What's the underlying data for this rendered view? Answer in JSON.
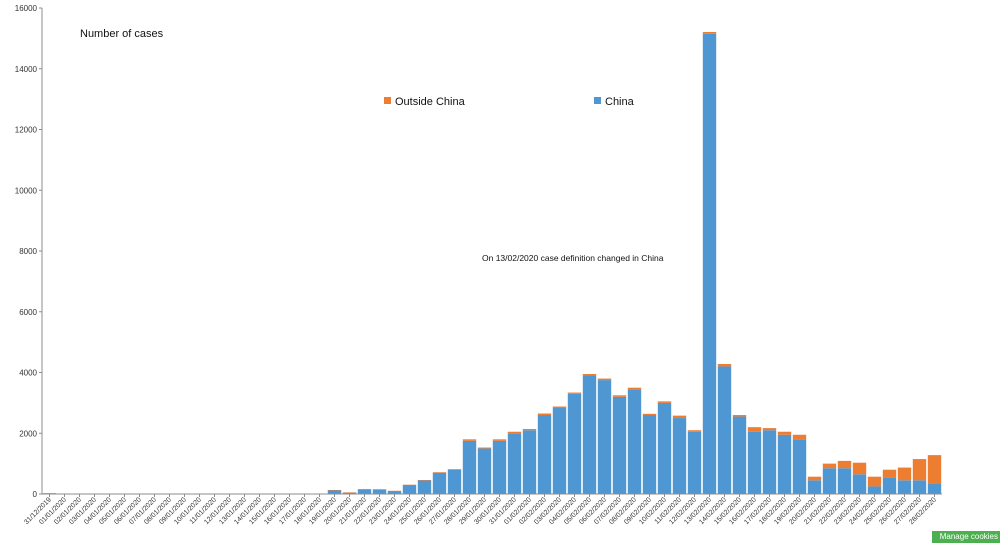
{
  "chart_data": {
    "type": "bar",
    "stacked": true,
    "title": "Number of cases",
    "annotation": "On 13/02/2020 case definition changed in China",
    "ylim": [
      0,
      16000
    ],
    "yticks": [
      0,
      2000,
      4000,
      6000,
      8000,
      10000,
      12000,
      14000,
      16000
    ],
    "grid": false,
    "legend_position": "top-center",
    "colors": {
      "China": "#4f97d2",
      "Outside China": "#ed7d31"
    },
    "categories": [
      "31/12/2019",
      "01/01/2020",
      "02/01/2020",
      "03/01/2020",
      "04/01/2020",
      "05/01/2020",
      "06/01/2020",
      "07/01/2020",
      "08/01/2020",
      "09/01/2020",
      "10/01/2020",
      "11/01/2020",
      "12/01/2020",
      "13/01/2020",
      "14/01/2020",
      "15/01/2020",
      "16/01/2020",
      "17/01/2020",
      "18/01/2020",
      "19/01/2020",
      "20/01/2020",
      "21/01/2020",
      "22/01/2020",
      "23/01/2020",
      "24/01/2020",
      "25/01/2020",
      "26/01/2020",
      "27/01/2020",
      "28/01/2020",
      "29/01/2020",
      "30/01/2020",
      "31/01/2020",
      "01/02/2020",
      "02/02/2020",
      "03/02/2020",
      "04/02/2020",
      "05/02/2020",
      "06/02/2020",
      "07/02/2020",
      "08/02/2020",
      "09/02/2020",
      "10/02/2020",
      "11/02/2020",
      "12/02/2020",
      "13/02/2020",
      "14/02/2020",
      "15/02/2020",
      "16/02/2020",
      "17/02/2020",
      "18/02/2020",
      "19/02/2020",
      "20/02/2020",
      "21/02/2020",
      "22/02/2020",
      "23/02/2020",
      "24/02/2020",
      "25/02/2020",
      "26/02/2020",
      "27/02/2020",
      "28/02/2020"
    ],
    "x_tick_labels": [
      "31/12/2019",
      "01/01/2020",
      "02/01/2020",
      "03/01/2020",
      "04/01/2020",
      "05/01/2020",
      "06/01/2020",
      "07/01/2020",
      "08/01/2020",
      "09/01/2020",
      "10/01/2020",
      "11/01/2020",
      "12/01/2020",
      "13/01/2020",
      "14/01/2020",
      "15/01/2020",
      "16/01/2020",
      "17/01/2020",
      "18/01/2020",
      "19/01/2020",
      "20/01/2020",
      "21/01/2020",
      "22/01/2020",
      "23/01/2020",
      "24/01/2020",
      "25/01/2020",
      "26/01/2020",
      "27/01/2020",
      "28/01/2020",
      "29/01/2020",
      "30/01/2020",
      "31/01/2020",
      "01/02/2020",
      "02/02/2020",
      "03/02/2020",
      "04/02/2020",
      "05/02/2020",
      "06/02/2020",
      "07/02/2020",
      "08/02/2020",
      "09/02/2020",
      "10/02/2020",
      "11/02/2020",
      "12/02/2020",
      "13/02/2020",
      "14/02/2020",
      "15/02/2020",
      "16/02/2020",
      "17/02/2020",
      "18/02/2020",
      "19/02/2020",
      "20/02/2020",
      "21/02/2020",
      "22/02/2020",
      "23/02/2020",
      "24/02/2020",
      "25/02/2020",
      "26/02/2020",
      "27/02/2020",
      "28/02/2020"
    ],
    "series": [
      {
        "name": "China",
        "values": [
          27,
          0,
          0,
          0,
          0,
          0,
          0,
          0,
          0,
          0,
          0,
          0,
          0,
          0,
          0,
          0,
          0,
          0,
          0,
          130,
          50,
          150,
          150,
          100,
          300,
          450,
          700,
          800,
          1750,
          1500,
          1750,
          2000,
          2100,
          2600,
          2850,
          3300,
          3900,
          3750,
          3200,
          3450,
          2600,
          3000,
          2500,
          2050,
          15150,
          4200,
          2550,
          2050,
          2100,
          1950,
          1800,
          450,
          850,
          850,
          650,
          250,
          550,
          450,
          450,
          330
        ]
      },
      {
        "name": "Outside China",
        "values": [
          0,
          0,
          0,
          0,
          0,
          0,
          0,
          0,
          0,
          0,
          0,
          0,
          0,
          0,
          0,
          0,
          0,
          0,
          0,
          3,
          3,
          10,
          5,
          5,
          5,
          10,
          20,
          20,
          50,
          30,
          50,
          50,
          40,
          50,
          30,
          40,
          50,
          50,
          50,
          50,
          40,
          50,
          80,
          50,
          60,
          80,
          50,
          150,
          70,
          100,
          150,
          120,
          150,
          240,
          380,
          320,
          250,
          420,
          700,
          950
        ]
      }
    ]
  },
  "footer": {
    "manage_cookies_label": "Manage cookies"
  }
}
